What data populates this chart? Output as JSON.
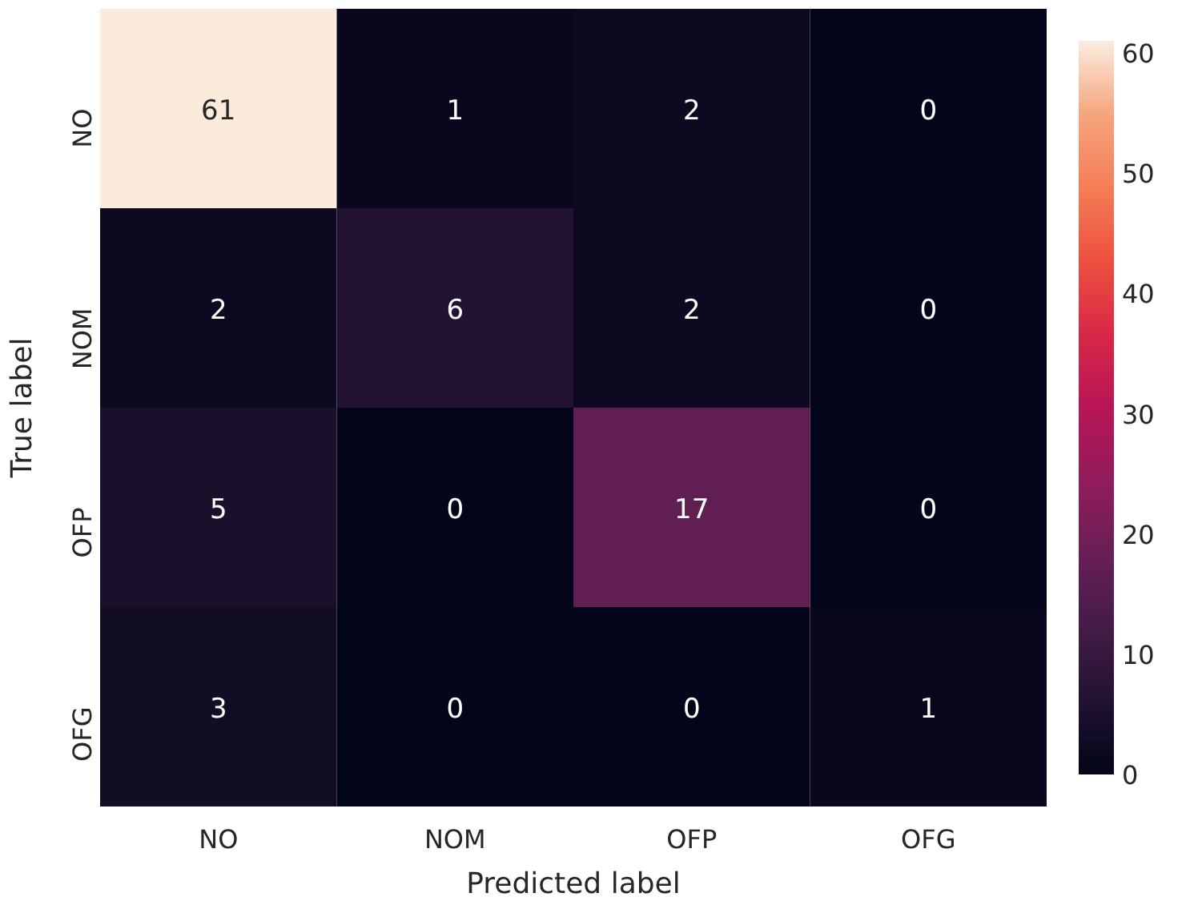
{
  "chart_data": {
    "type": "heatmap",
    "xlabel": "Predicted label",
    "ylabel": "True label",
    "categories": [
      "NO",
      "NOM",
      "OFP",
      "OFG"
    ],
    "y_categories": [
      "NO",
      "NOM",
      "OFP",
      "OFG"
    ],
    "cells": [
      [
        61,
        1,
        2,
        0
      ],
      [
        2,
        6,
        2,
        0
      ],
      [
        5,
        0,
        17,
        0
      ],
      [
        3,
        0,
        0,
        1
      ]
    ],
    "clim": [
      0,
      61
    ],
    "cticks": [
      0,
      10,
      20,
      30,
      40,
      50,
      60
    ],
    "data_labels": true
  }
}
